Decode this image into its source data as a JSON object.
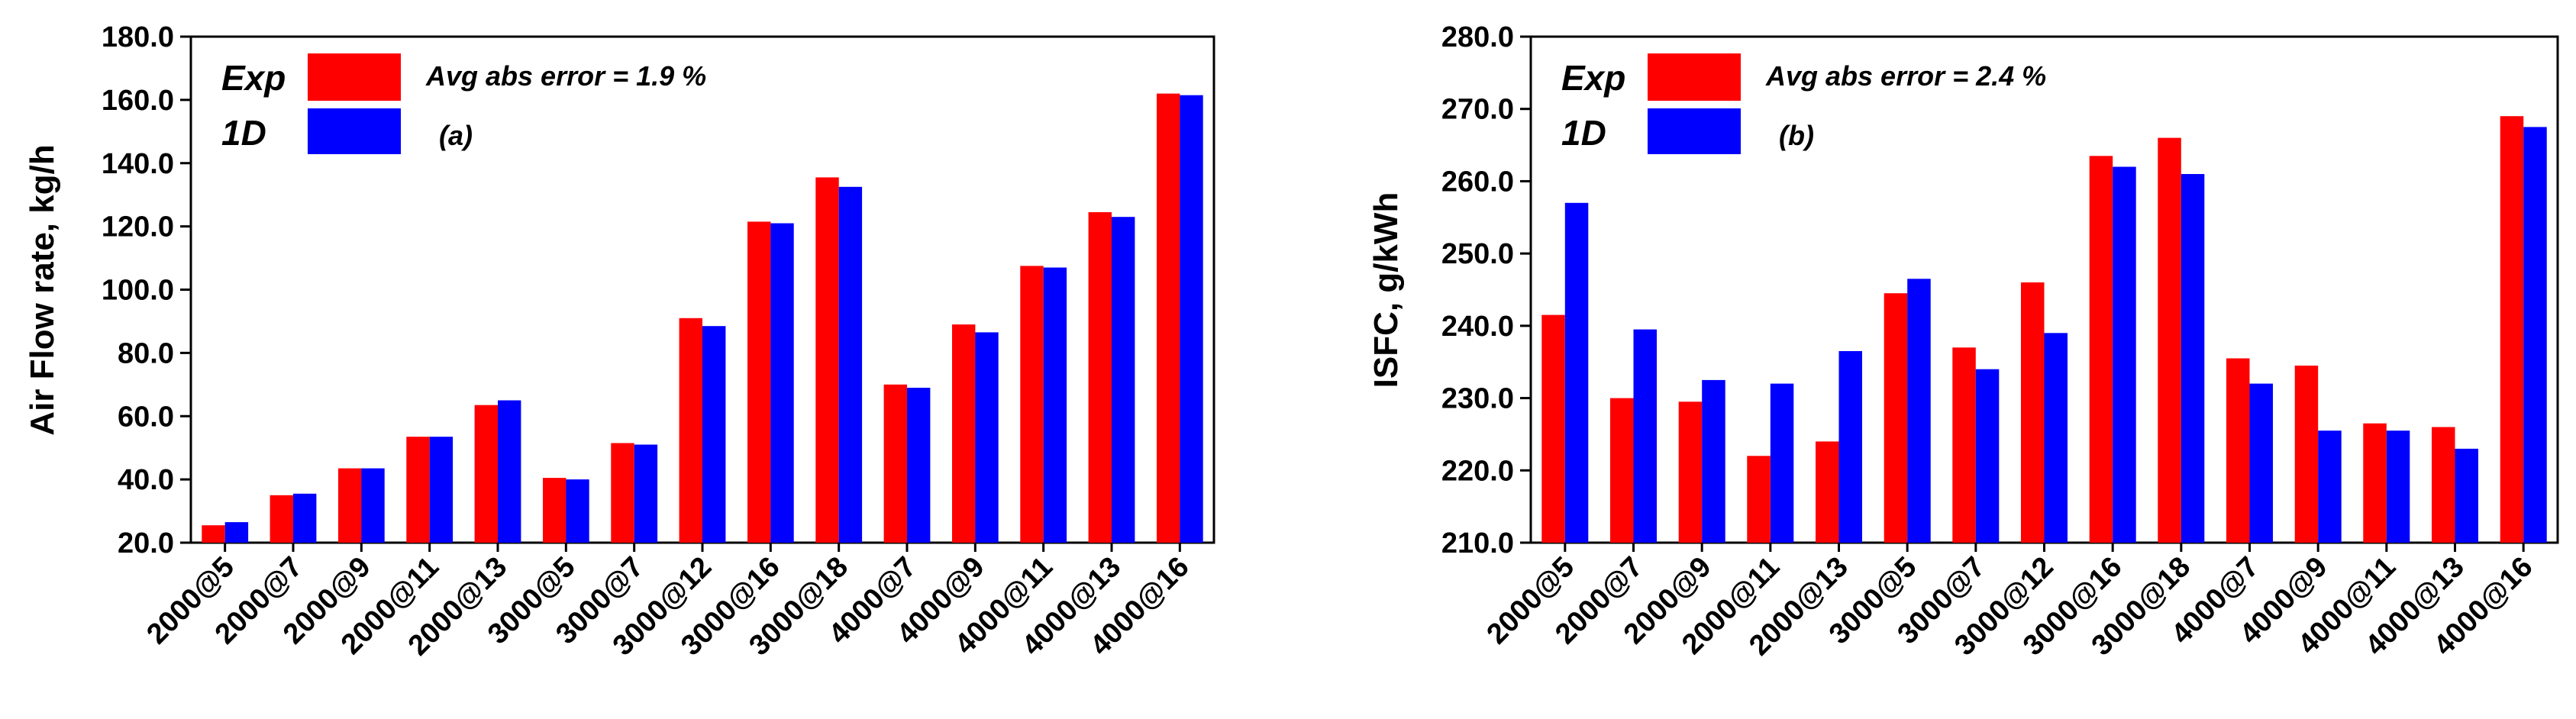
{
  "chart_data": [
    {
      "type": "bar",
      "categories": [
        "2000@5",
        "2000@7",
        "2000@9",
        "2000@11",
        "2000@13",
        "3000@5",
        "3000@7",
        "3000@12",
        "3000@16",
        "3000@18",
        "4000@7",
        "4000@9",
        "4000@11",
        "4000@13",
        "4000@16"
      ],
      "series": [
        {
          "name": "Exp",
          "values": [
            25.5,
            35.0,
            43.5,
            53.5,
            63.5,
            40.5,
            51.5,
            91.0,
            121.5,
            135.5,
            70.0,
            89.0,
            107.5,
            124.5,
            162.0
          ]
        },
        {
          "name": "1D",
          "values": [
            26.5,
            35.5,
            43.5,
            53.5,
            65.0,
            40.0,
            51.0,
            88.5,
            121.0,
            132.5,
            69.0,
            86.5,
            107.0,
            123.0,
            161.5
          ]
        }
      ],
      "ylabel": "Air Flow rate, kg/h",
      "ylim": [
        20.0,
        180.0
      ],
      "yticks": [
        "20.0",
        "40.0",
        "60.0",
        "80.0",
        "100.0",
        "120.0",
        "140.0",
        "160.0",
        "180.0"
      ],
      "annotation": "Avg abs error = 1.9 %",
      "panel_label": "(a)",
      "legend_placement": "top-left"
    },
    {
      "type": "bar",
      "categories": [
        "2000@5",
        "2000@7",
        "2000@9",
        "2000@11",
        "2000@13",
        "3000@5",
        "3000@7",
        "3000@12",
        "3000@16",
        "3000@18",
        "4000@7",
        "4000@9",
        "4000@11",
        "4000@13",
        "4000@16"
      ],
      "series": [
        {
          "name": "Exp",
          "values": [
            241.5,
            230.0,
            229.5,
            222.0,
            224.0,
            244.5,
            237.0,
            246.0,
            263.5,
            266.0,
            235.5,
            234.5,
            226.5,
            226.0,
            269.0
          ]
        },
        {
          "name": "1D",
          "values": [
            257.0,
            239.5,
            232.5,
            232.0,
            236.5,
            246.5,
            234.0,
            239.0,
            262.0,
            261.0,
            232.0,
            225.5,
            225.5,
            223.0,
            267.5
          ]
        }
      ],
      "ylabel": "ISFC, g/kWh",
      "ylim": [
        210.0,
        280.0
      ],
      "yticks": [
        "210.0",
        "220.0",
        "230.0",
        "240.0",
        "250.0",
        "260.0",
        "270.0",
        "280.0"
      ],
      "annotation": "Avg abs error = 2.4 %",
      "panel_label": "(b)",
      "legend_placement": "top-left"
    }
  ],
  "colors": {
    "exp": "#ff0000",
    "oned": "#0000ff",
    "axis": "#000000"
  }
}
